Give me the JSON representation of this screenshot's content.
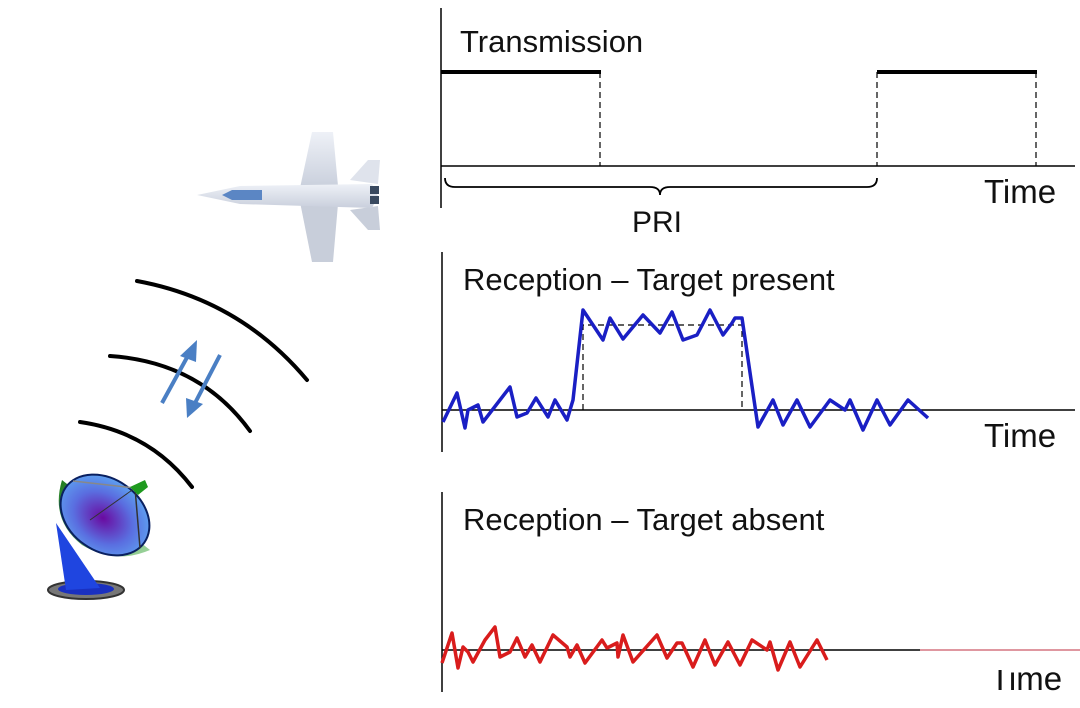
{
  "transmission": {
    "title": "Transmission",
    "axis_label": "Time",
    "interval_label": "PRI"
  },
  "reception_present": {
    "title": "Reception – Target  present",
    "axis_label": "Time"
  },
  "reception_absent": {
    "title": "Reception – Target absent",
    "axis_label": "Time"
  },
  "colors": {
    "present_signal": "#1a1fc4",
    "absent_signal": "#d91c1c",
    "arrows": "#4a7fc4",
    "waves": "#000000"
  },
  "icons": [
    "fighter-jet-icon",
    "radar-dish-icon",
    "radar-wave-arcs",
    "bidirectional-arrows-icon"
  ]
}
